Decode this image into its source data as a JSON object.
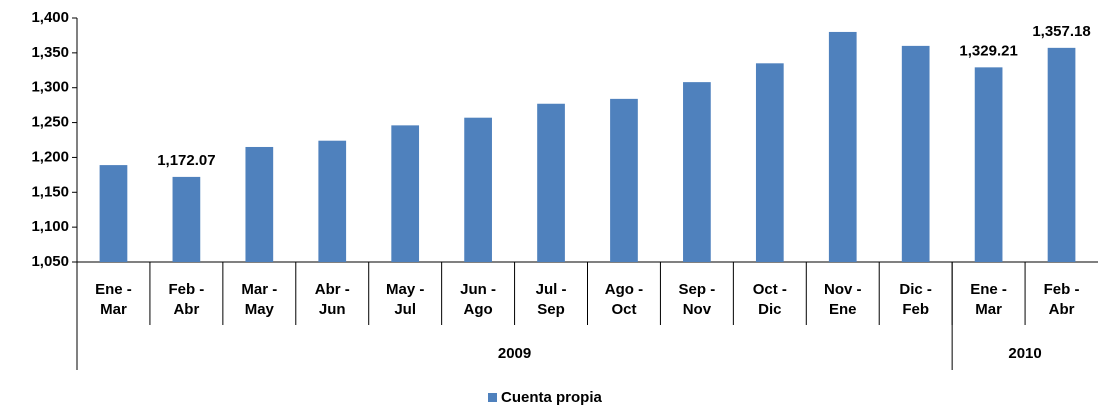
{
  "chart_data": {
    "type": "bar",
    "categories": [
      "Ene - Mar",
      "Feb - Abr",
      "Mar - May",
      "Abr - Jun",
      "May - Jul",
      "Jun - Ago",
      "Jul - Sep",
      "Ago - Oct",
      "Sep - Nov",
      "Oct - Dic",
      "Nov - Ene",
      "Dic - Feb",
      "Ene - Mar",
      "Feb - Abr"
    ],
    "groups": [
      {
        "label": "2009",
        "span": 12
      },
      {
        "label": "2010",
        "span": 2
      }
    ],
    "series": [
      {
        "name": "Cuenta propia",
        "color": "#4f81bd",
        "values": [
          1189,
          1172.07,
          1215,
          1224,
          1246,
          1257,
          1277,
          1284,
          1308,
          1335,
          1380,
          1360,
          1329.21,
          1357.18
        ],
        "value_labels": [
          null,
          "1,172.07",
          null,
          null,
          null,
          null,
          null,
          null,
          null,
          null,
          null,
          null,
          "1,329.21",
          "1,357.18"
        ]
      }
    ],
    "ylim": [
      1050,
      1400
    ],
    "yticks": [
      {
        "value": 1050,
        "label": "1,050"
      },
      {
        "value": 1100,
        "label": "1,100"
      },
      {
        "value": 1150,
        "label": "1,150"
      },
      {
        "value": 1200,
        "label": "1,200"
      },
      {
        "value": 1250,
        "label": "1,250"
      },
      {
        "value": 1300,
        "label": "1,300"
      },
      {
        "value": 1350,
        "label": "1,350"
      },
      {
        "value": 1400,
        "label": "1,400"
      }
    ],
    "grid": false,
    "legend": "bottom"
  }
}
